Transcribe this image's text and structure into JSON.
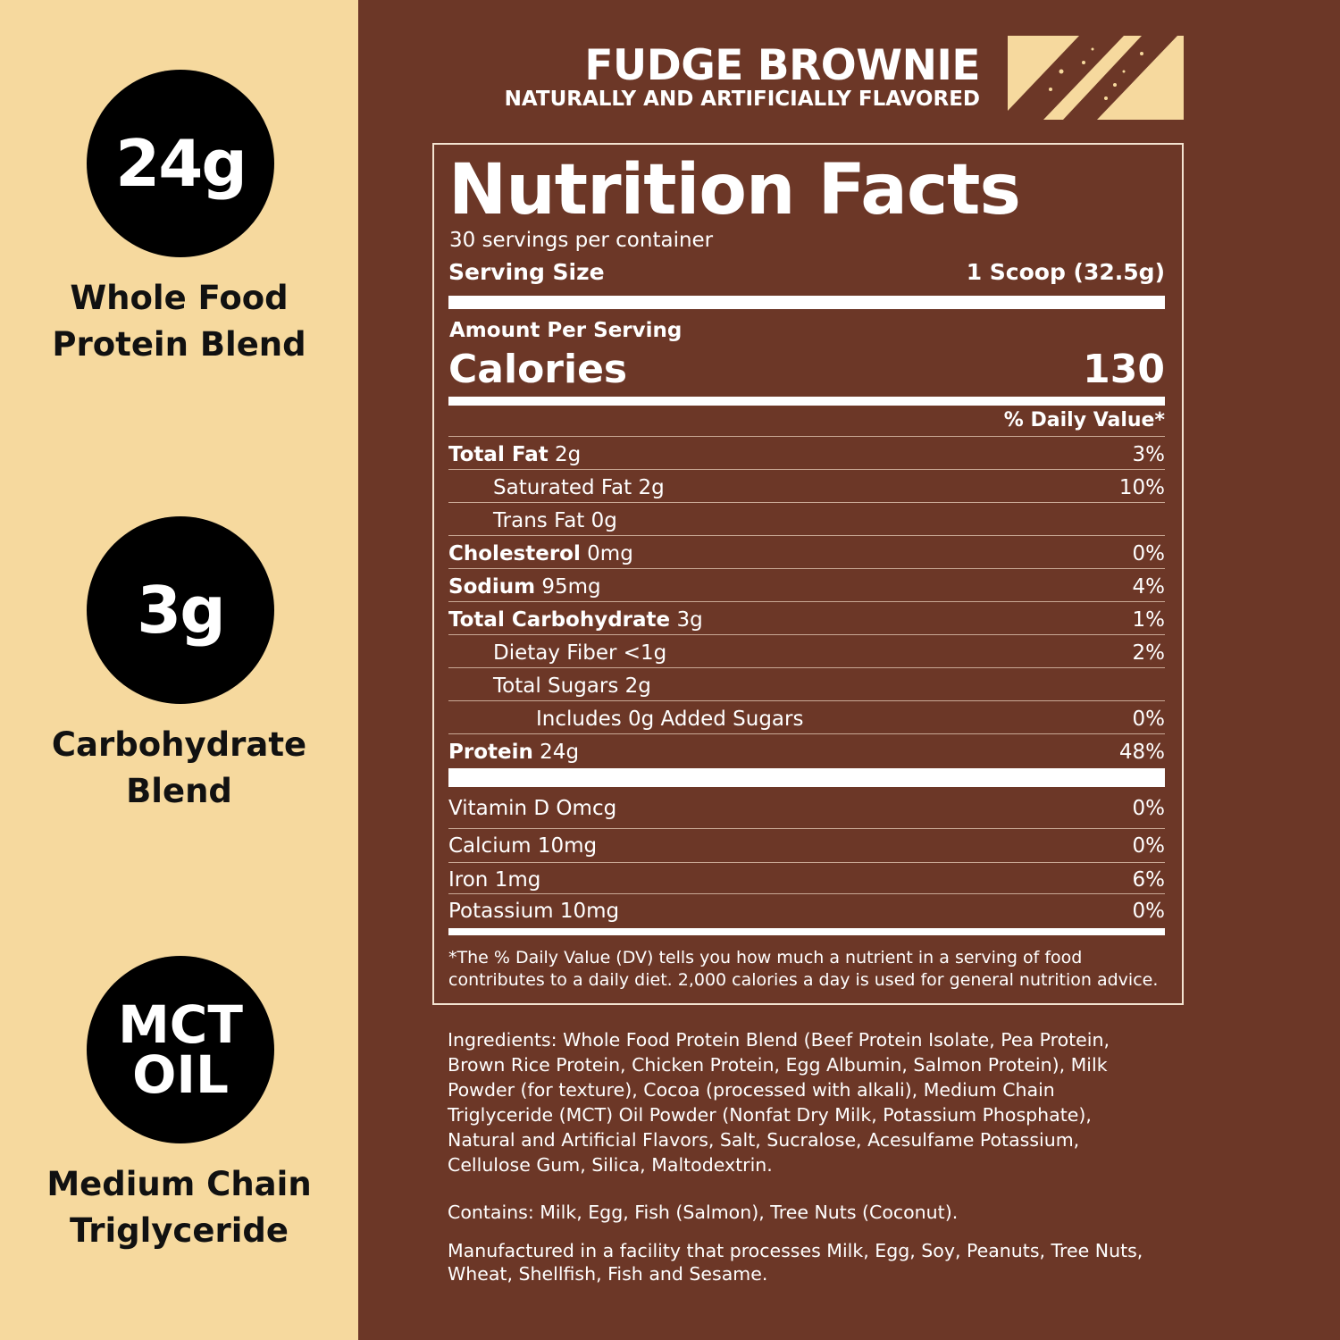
{
  "features": [
    {
      "badge": "24g",
      "label_lines": [
        "Whole Food",
        "Protein Blend"
      ]
    },
    {
      "badge": "3g",
      "label_lines": [
        "Carbohydrate",
        "Blend"
      ]
    },
    {
      "badge_lines": [
        "MCT",
        "OIL"
      ],
      "label_lines": [
        "Medium Chain",
        "Triglyceride"
      ]
    }
  ],
  "product": {
    "flavor": "FUDGE BROWNIE",
    "flavor_note": "NATURALLY AND ARTIFICIALLY FLAVORED"
  },
  "nutrition": {
    "title": "Nutrition Facts",
    "servings": "30 servings per container",
    "serving_size_label": "Serving Size",
    "serving_size_value": "1 Scoop (32.5g)",
    "amount_per_serving": "Amount Per Serving",
    "calories_label": "Calories",
    "calories_value": "130",
    "daily_value_header": "% Daily Value*",
    "rows": [
      {
        "name": "Total Fat",
        "amount": "2g",
        "dv": "3%"
      },
      {
        "name": "Saturated Fat 2g",
        "amount": "",
        "dv": "10%"
      },
      {
        "name": "Trans Fat 0g",
        "amount": "",
        "dv": ""
      },
      {
        "name": "Cholesterol",
        "amount": "0mg",
        "dv": "0%"
      },
      {
        "name": "Sodium",
        "amount": "95mg",
        "dv": "4%"
      },
      {
        "name": "Total Carbohydrate",
        "amount": "3g",
        "dv": "1%"
      },
      {
        "name": "Dietay Fiber <1g",
        "amount": "",
        "dv": "2%"
      },
      {
        "name": "Total Sugars 2g",
        "amount": "",
        "dv": ""
      },
      {
        "name": "Includes 0g Added Sugars",
        "amount": "",
        "dv": "0%"
      },
      {
        "name": "Protein",
        "amount": "24g",
        "dv": "48%"
      }
    ],
    "vitamins": [
      {
        "name": "Vitamin D Omcg",
        "dv": "0%"
      },
      {
        "name": "Calcium 10mg",
        "dv": "0%"
      },
      {
        "name": "Iron 1mg",
        "dv": "6%"
      },
      {
        "name": "Potassium 10mg",
        "dv": "0%"
      }
    ],
    "footnote_lines": [
      "*The % Daily Value (DV) tells you how much a nutrient in a serving of food",
      "contributes to a daily diet. 2,000 calories a day is used for general nutrition advice."
    ]
  },
  "ingredients_lines": [
    "Ingredients: Whole Food Protein Blend (Beef Protein Isolate, Pea Protein,",
    "Brown Rice Protein, Chicken Protein, Egg Albumin, Salmon Protein), Milk",
    "Powder (for texture), Cocoa (processed with alkali), Medium Chain",
    "Triglyceride (MCT) Oil Powder (Nonfat Dry Milk, Potassium Phosphate),",
    "Natural and Artificial Flavors, Salt, Sucralose, Acesulfame Potassium,",
    "Cellulose Gum, Silica, Maltodextrin."
  ],
  "contains": "Contains: Milk, Egg, Fish (Salmon), Tree Nuts (Coconut).",
  "facility_lines": [
    "Manufactured in a facility that processes Milk, Egg, Soy, Peanuts, Tree Nuts,",
    "Wheat, Shellfish, Fish and Sesame."
  ],
  "colors": {
    "brown": "#6c3727",
    "cream": "#f6d99e",
    "badge": "#000000"
  }
}
